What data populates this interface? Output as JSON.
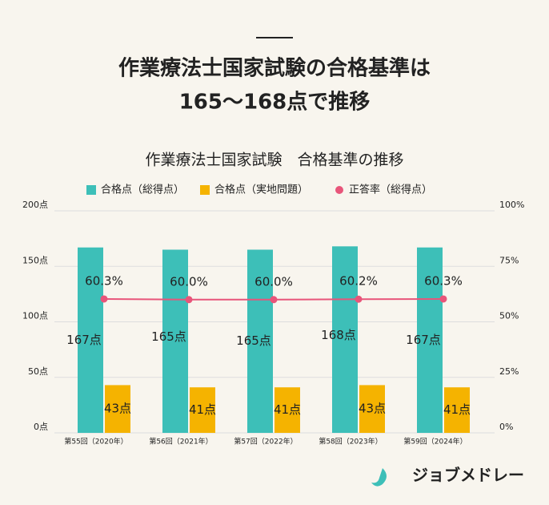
{
  "header": {
    "lines": [
      "作業療法士国家試験の合格基準は",
      "165～168点で推移"
    ]
  },
  "footer": {
    "brand": "ジョブメドレー"
  },
  "chart_data": {
    "type": "bar",
    "title": "作業療法士国家試験　合格基準の推移",
    "categories": [
      "第55回（2020年）",
      "第56回（2021年）",
      "第57回（2022年）",
      "第58回（2023年）",
      "第59回（2024年）"
    ],
    "series": [
      {
        "name": "合格点（総得点）",
        "color": "#3dbfb8",
        "values": [
          167,
          165,
          165,
          168,
          167
        ],
        "value_labels": [
          "167点",
          "165点",
          "165点",
          "168点",
          "167点"
        ]
      },
      {
        "name": "合格点（実地問題）",
        "color": "#f5b300",
        "values": [
          43,
          41,
          41,
          43,
          41
        ],
        "value_labels": [
          "43点",
          "41点",
          "41点",
          "43点",
          "41点"
        ]
      },
      {
        "name": "正答率（総得点）",
        "color": "#e8557a",
        "axis": "y2",
        "type": "line",
        "values": [
          60.3,
          60.0,
          60.0,
          60.2,
          60.3
        ],
        "value_labels": [
          "60.3%",
          "60.0%",
          "60.0%",
          "60.2%",
          "60.3%"
        ]
      }
    ],
    "ylim": [
      0,
      200
    ],
    "yticks": [
      {
        "value": 0,
        "label": "0点"
      },
      {
        "value": 50,
        "label": "50点"
      },
      {
        "value": 100,
        "label": "100点"
      },
      {
        "value": 150,
        "label": "150点"
      },
      {
        "value": 200,
        "label": "200点"
      }
    ],
    "y2lim": [
      0,
      100
    ],
    "y2ticks": [
      {
        "value": 0,
        "label": "0%"
      },
      {
        "value": 25,
        "label": "25%"
      },
      {
        "value": 50,
        "label": "50%"
      },
      {
        "value": 75,
        "label": "75%"
      },
      {
        "value": 100,
        "label": "100%"
      }
    ],
    "grid": true,
    "legend": "top"
  }
}
